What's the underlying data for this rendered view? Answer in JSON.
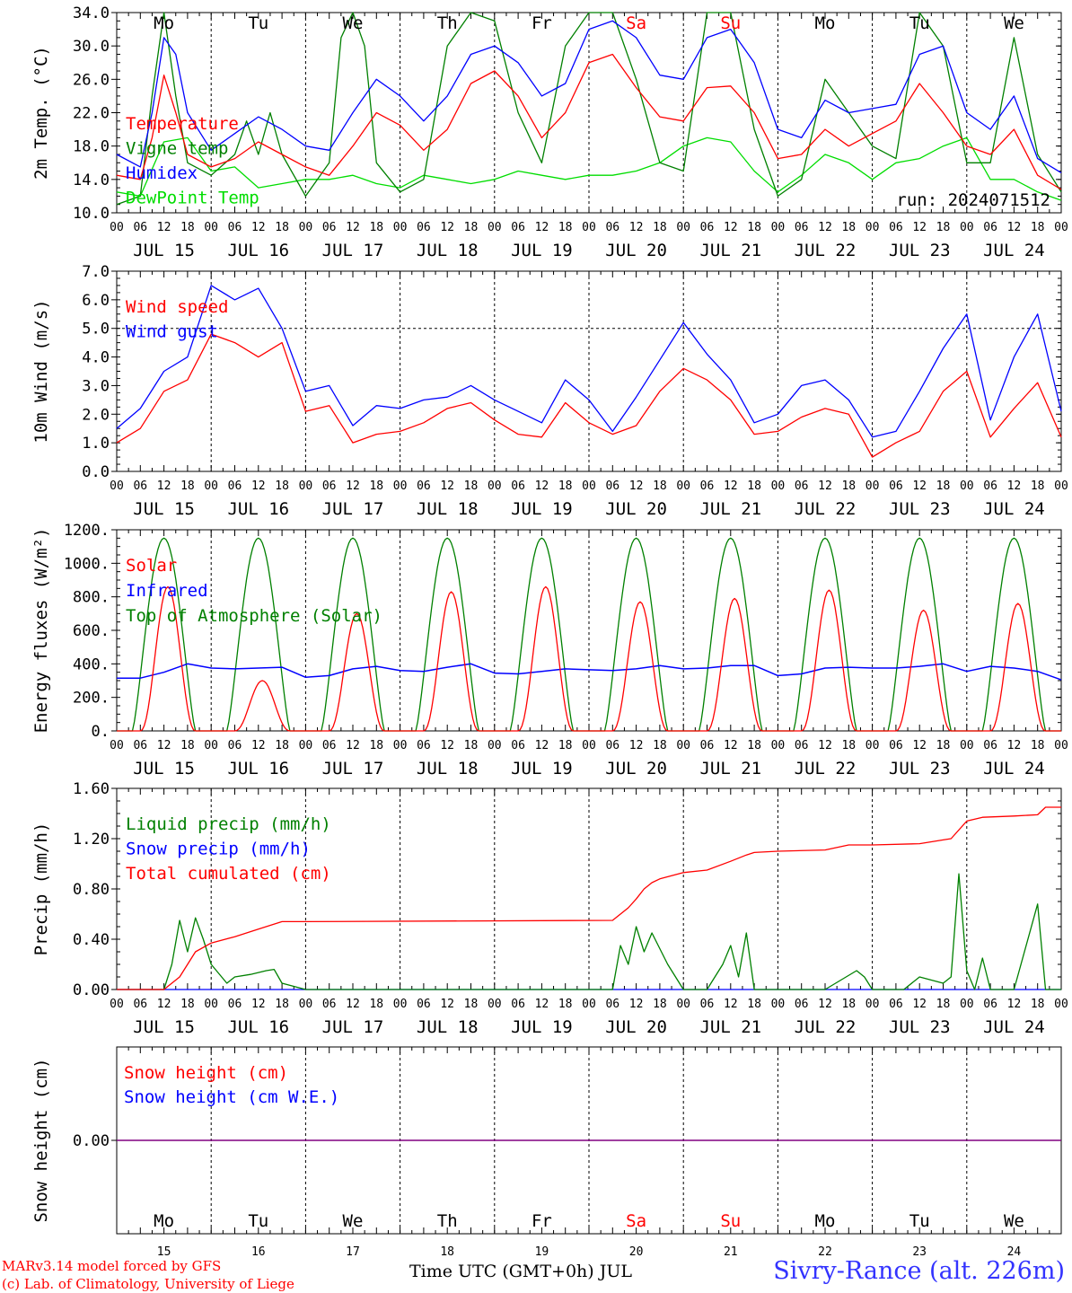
{
  "footer": {
    "model_line": "MARv3.14 model forced by GFS",
    "credit_line": "(c) Lab. of Climatology, University of Liege",
    "time_label": "Time UTC (GMT+0h) JUL",
    "station": "Sivry-Rance (alt. 226m)"
  },
  "colors": {
    "red": "#ff0000",
    "green": "#008000",
    "blue": "#0000ff",
    "lime": "#00dd00",
    "purple": "#800080",
    "weekend": "#ff0000"
  },
  "days": {
    "dates": [
      "JUL 15",
      "JUL 16",
      "JUL 17",
      "JUL 18",
      "JUL 19",
      "JUL 20",
      "JUL 21",
      "JUL 22",
      "JUL 23",
      "JUL 24"
    ],
    "day_numbers": [
      "15",
      "16",
      "17",
      "18",
      "19",
      "20",
      "21",
      "22",
      "23",
      "24"
    ],
    "weekdays": [
      "Mo",
      "Tu",
      "We",
      "Th",
      "Fr",
      "Sa",
      "Su",
      "Mo",
      "Tu",
      "We"
    ],
    "weekend_flags": [
      false,
      false,
      false,
      false,
      false,
      true,
      true,
      false,
      false,
      false
    ],
    "hour_labels": [
      "00",
      "06",
      "12",
      "18"
    ],
    "end_label": "00"
  },
  "chart_data": [
    {
      "type": "line",
      "ylabel": "2m Temp. (°C)",
      "ylim": [
        10,
        34
      ],
      "yticks": [
        "10.0",
        "14.0",
        "18.0",
        "22.0",
        "26.0",
        "30.0",
        "34.0"
      ],
      "annotation": "run: 2024071512",
      "x_unit": "hours since JUL 15 00 UTC",
      "series": [
        {
          "name": "Temperature",
          "color": "red",
          "x": [
            0,
            6,
            9,
            12,
            15,
            18,
            24,
            30,
            36,
            42,
            48,
            54,
            60,
            66,
            72,
            78,
            84,
            90,
            96,
            102,
            108,
            114,
            120,
            126,
            132,
            138,
            144,
            150,
            156,
            162,
            168,
            174,
            180,
            186,
            192,
            198,
            204,
            210,
            216,
            222,
            228,
            234,
            240
          ],
          "values": [
            14.5,
            14,
            19,
            26.5,
            22,
            17,
            15.5,
            16.5,
            18.5,
            17,
            15.5,
            14.5,
            18,
            22,
            20.5,
            17.5,
            20,
            25.5,
            27,
            24,
            19,
            22,
            28,
            29,
            25,
            21.5,
            21,
            25,
            25.2,
            22,
            16.5,
            17,
            20,
            18,
            19.5,
            21,
            25.5,
            22,
            18,
            17,
            20,
            14.5,
            12.8
          ]
        },
        {
          "name": "Vigne temp",
          "color": "green",
          "x": [
            0,
            6,
            9,
            12,
            15,
            18,
            24,
            30,
            33,
            36,
            39,
            42,
            48,
            54,
            57,
            60,
            63,
            66,
            72,
            78,
            84,
            90,
            96,
            102,
            108,
            114,
            120,
            126,
            132,
            138,
            144,
            150,
            156,
            162,
            168,
            174,
            180,
            186,
            192,
            198,
            204,
            210,
            216,
            222,
            228,
            234,
            240
          ],
          "values": [
            11,
            12,
            24,
            34,
            24,
            16,
            14.5,
            17,
            21,
            17,
            22,
            17,
            12,
            16,
            31,
            34,
            30,
            16,
            12.5,
            14,
            30,
            34,
            33,
            22,
            16,
            30,
            34,
            34,
            26,
            16,
            15,
            34,
            34,
            20,
            12,
            14,
            26,
            22,
            18,
            16.5,
            34,
            30,
            16,
            16,
            31,
            17,
            12.5
          ]
        },
        {
          "name": "Humidex",
          "color": "blue",
          "x": [
            0,
            6,
            9,
            12,
            15,
            18,
            24,
            30,
            36,
            42,
            48,
            54,
            60,
            66,
            72,
            78,
            84,
            90,
            96,
            102,
            108,
            114,
            120,
            126,
            132,
            138,
            144,
            150,
            156,
            162,
            168,
            174,
            180,
            186,
            192,
            198,
            204,
            210,
            216,
            222,
            228,
            234,
            240
          ],
          "values": [
            17,
            15.5,
            22,
            31,
            29,
            22,
            17.5,
            19.5,
            21.5,
            20,
            18,
            17.5,
            22,
            26,
            24,
            21,
            24,
            29,
            30,
            28,
            24,
            25.5,
            32,
            33,
            31,
            26.5,
            26,
            31,
            32,
            28,
            20,
            19,
            23.5,
            22,
            22.5,
            23,
            29,
            30,
            22,
            20,
            24,
            16.5,
            14.8
          ]
        },
        {
          "name": "DewPoint Temp",
          "color": "lime",
          "x": [
            0,
            6,
            12,
            18,
            24,
            30,
            36,
            42,
            48,
            54,
            60,
            66,
            72,
            78,
            84,
            90,
            96,
            102,
            108,
            114,
            120,
            126,
            132,
            138,
            144,
            150,
            156,
            162,
            168,
            174,
            180,
            186,
            192,
            198,
            204,
            210,
            216,
            222,
            228,
            234,
            240
          ],
          "values": [
            12.5,
            12,
            18.5,
            19,
            15,
            15.5,
            13,
            13.5,
            14,
            14,
            14.5,
            13.5,
            13,
            14.5,
            14,
            13.5,
            14,
            15,
            14.5,
            14,
            14.5,
            14.5,
            15,
            16,
            18,
            19,
            18.5,
            15,
            12.5,
            14.5,
            17,
            16,
            14,
            16,
            16.5,
            18,
            19,
            14,
            14,
            12.5,
            11.5
          ]
        }
      ]
    },
    {
      "type": "line",
      "ylabel": "10m Wind (m/s)",
      "ylim": [
        0,
        7
      ],
      "yticks": [
        "0.0",
        "1.0",
        "2.0",
        "3.0",
        "4.0",
        "5.0",
        "6.0",
        "7.0"
      ],
      "reference_line": 5,
      "x_unit": "hours since JUL 15 00 UTC",
      "series": [
        {
          "name": "Wind speed",
          "color": "red",
          "x": [
            0,
            6,
            12,
            18,
            24,
            30,
            36,
            42,
            48,
            54,
            60,
            66,
            72,
            78,
            84,
            90,
            96,
            102,
            108,
            114,
            120,
            126,
            132,
            138,
            144,
            150,
            156,
            162,
            168,
            174,
            180,
            186,
            192,
            198,
            204,
            210,
            216,
            222,
            228,
            234,
            240
          ],
          "values": [
            1,
            1.5,
            2.8,
            3.2,
            4.8,
            4.5,
            4,
            4.5,
            2.1,
            2.3,
            1,
            1.3,
            1.4,
            1.7,
            2.2,
            2.4,
            1.8,
            1.3,
            1.2,
            2.4,
            1.7,
            1.3,
            1.6,
            2.8,
            3.6,
            3.2,
            2.5,
            1.3,
            1.4,
            1.9,
            2.2,
            2,
            0.5,
            1,
            1.4,
            2.8,
            3.5,
            1.2,
            2.2,
            3.1,
            1.2
          ]
        },
        {
          "name": "Wind gust",
          "color": "blue",
          "x": [
            0,
            6,
            12,
            18,
            24,
            30,
            36,
            42,
            48,
            54,
            60,
            66,
            72,
            78,
            84,
            90,
            96,
            102,
            108,
            114,
            120,
            126,
            132,
            138,
            144,
            150,
            156,
            162,
            168,
            174,
            180,
            186,
            192,
            198,
            204,
            210,
            216,
            222,
            228,
            234,
            240
          ],
          "values": [
            1.5,
            2.2,
            3.5,
            4,
            6.5,
            6,
            6.4,
            5,
            2.8,
            3,
            1.6,
            2.3,
            2.2,
            2.5,
            2.6,
            3,
            2.5,
            2.1,
            1.7,
            3.2,
            2.5,
            1.4,
            2.6,
            3.9,
            5.2,
            4.1,
            3.2,
            1.7,
            2,
            3,
            3.2,
            2.5,
            1.2,
            1.4,
            2.8,
            4.3,
            5.5,
            1.8,
            4,
            5.5,
            2.1
          ]
        }
      ]
    },
    {
      "type": "line",
      "ylabel": "Energy fluxes (W/m²)",
      "ylim": [
        0,
        1200
      ],
      "yticks": [
        "0.",
        "200.",
        "400.",
        "600.",
        "800.",
        "1000.",
        "1200."
      ],
      "x_unit": "hours since JUL 15 00 UTC",
      "series": [
        {
          "name": "Solar",
          "color": "red",
          "day_peaks": [
            860,
            300,
            700,
            830,
            860,
            770,
            790,
            840,
            720,
            760
          ]
        },
        {
          "name": "Infrared",
          "color": "blue",
          "x": [
            0,
            6,
            12,
            18,
            24,
            30,
            36,
            42,
            48,
            54,
            60,
            66,
            72,
            78,
            84,
            90,
            96,
            102,
            108,
            114,
            120,
            126,
            132,
            138,
            144,
            150,
            156,
            162,
            168,
            174,
            180,
            186,
            192,
            198,
            204,
            210,
            216,
            222,
            228,
            234,
            240
          ],
          "values": [
            315,
            315,
            350,
            400,
            375,
            370,
            375,
            380,
            320,
            330,
            370,
            385,
            360,
            355,
            380,
            400,
            345,
            340,
            355,
            370,
            365,
            360,
            370,
            390,
            370,
            375,
            390,
            390,
            330,
            340,
            375,
            380,
            375,
            375,
            385,
            400,
            355,
            385,
            375,
            355,
            305
          ]
        },
        {
          "name": "Top of Atmosphere (Solar)",
          "color": "green",
          "day_peak": 1150,
          "sunrise_hour": 4,
          "sunset_hour": 20
        }
      ]
    },
    {
      "type": "line",
      "ylabel": "Precip (mm/h)",
      "ylim": [
        0,
        1.6
      ],
      "yticks": [
        "0.00",
        "0.40",
        "0.80",
        "1.20",
        "1.60"
      ],
      "x_unit": "hours since JUL 15 00 UTC",
      "series": [
        {
          "name": "Liquid precip (mm/h)",
          "color": "green",
          "x": [
            0,
            12,
            14,
            16,
            18,
            20,
            22,
            24,
            28,
            30,
            34,
            38,
            40,
            42,
            48,
            120,
            126,
            128,
            130,
            132,
            134,
            136,
            140,
            144,
            150,
            154,
            156,
            158,
            160,
            162,
            168,
            180,
            188,
            190,
            192,
            200,
            204,
            210,
            212,
            214,
            216,
            218,
            220,
            222,
            224,
            228,
            234,
            236,
            238,
            240
          ],
          "values": [
            0,
            0,
            0.2,
            0.55,
            0.3,
            0.57,
            0.4,
            0.2,
            0.05,
            0.1,
            0.12,
            0.15,
            0.16,
            0.05,
            0,
            0,
            0,
            0.35,
            0.2,
            0.5,
            0.3,
            0.45,
            0.2,
            0,
            0,
            0.2,
            0.35,
            0.1,
            0.45,
            0,
            0,
            0,
            0.15,
            0.1,
            0,
            0,
            0.1,
            0.05,
            0.1,
            0.92,
            0.15,
            0,
            0.25,
            0,
            0,
            0,
            0.68,
            0,
            0,
            0
          ]
        },
        {
          "name": "Snow precip (mm/h)",
          "color": "blue",
          "x": [
            0,
            240
          ],
          "values": [
            0,
            0
          ]
        },
        {
          "name": "Total cumulated (cm)",
          "color": "red",
          "x": [
            0,
            12,
            16,
            20,
            24,
            30,
            36,
            42,
            48,
            126,
            130,
            132,
            134,
            136,
            138,
            144,
            150,
            156,
            160,
            162,
            168,
            180,
            186,
            192,
            204,
            210,
            212,
            216,
            220,
            228,
            234,
            236,
            240
          ],
          "values": [
            0,
            0,
            0.1,
            0.3,
            0.37,
            0.42,
            0.48,
            0.54,
            0.54,
            0.55,
            0.65,
            0.72,
            0.8,
            0.85,
            0.88,
            0.93,
            0.95,
            1.02,
            1.07,
            1.09,
            1.1,
            1.11,
            1.15,
            1.15,
            1.16,
            1.19,
            1.2,
            1.34,
            1.37,
            1.38,
            1.39,
            1.45,
            1.45
          ]
        }
      ]
    },
    {
      "type": "line",
      "ylabel": "Snow height (cm)",
      "yticks": [
        "0.00"
      ],
      "x_unit": "hours since JUL 15 00 UTC",
      "series": [
        {
          "name": "Snow height (cm)",
          "color": "red",
          "x": [
            0,
            240
          ],
          "values": [
            0,
            0
          ]
        },
        {
          "name": "Snow height (cm W.E.)",
          "color": "blue",
          "x": [
            0,
            240
          ],
          "values": [
            0,
            0
          ]
        }
      ]
    }
  ]
}
